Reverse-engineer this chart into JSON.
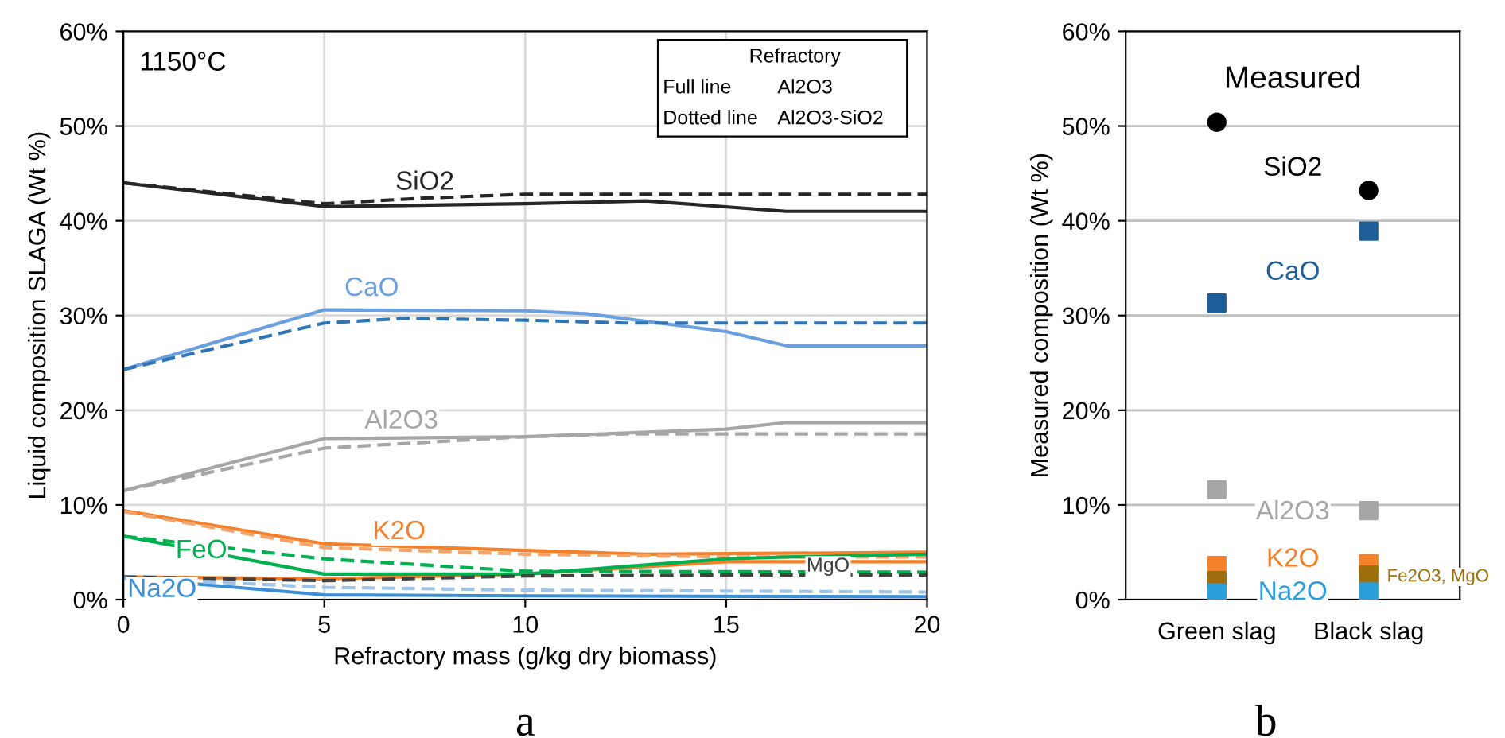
{
  "chart_data": [
    {
      "type": "line",
      "xlabel": "Refractory mass (g/kg dry biomass)",
      "ylabel": "Liquid composition SLAGA (Wt %)",
      "xlim": [
        0,
        20
      ],
      "xticks": [
        0,
        5,
        10,
        15,
        20
      ],
      "ylim": [
        0,
        60
      ],
      "yticks": [
        {
          "value": 0,
          "label": "0%"
        },
        {
          "value": 10,
          "label": "10%"
        },
        {
          "value": 20,
          "label": "20%"
        },
        {
          "value": 30,
          "label": "30%"
        },
        {
          "value": 40,
          "label": "40%"
        },
        {
          "value": 50,
          "label": "50%"
        },
        {
          "value": 60,
          "label": "60%"
        }
      ],
      "grid": true,
      "legend": false,
      "marker": "none",
      "annotations": [
        "1150°C",
        "Refractory",
        "Full line",
        "Al2O3",
        "Dotted line",
        "Al2O3-SiO2",
        "a"
      ],
      "series": [
        {
          "name": "SiO2",
          "color": "#262626",
          "line_style": "solid",
          "x": [
            0,
            5,
            10,
            13,
            16.5,
            20
          ],
          "values": [
            44,
            41.5,
            41.8,
            42.1,
            41,
            41
          ]
        },
        {
          "color": "#262626",
          "line_style": "dashed",
          "x": [
            0,
            5,
            7.5,
            10,
            20
          ],
          "values": [
            44,
            41.8,
            42.4,
            42.8,
            42.8
          ]
        },
        {
          "name": "CaO",
          "color": "#6a9fe0",
          "line_style": "solid",
          "x": [
            0,
            5,
            10,
            11.5,
            15,
            16.5,
            20
          ],
          "values": [
            24.3,
            30.6,
            30.5,
            30.2,
            28.3,
            26.8,
            26.8
          ]
        },
        {
          "color": "#2e75b6",
          "line_style": "dashed",
          "x": [
            0,
            5,
            7,
            10,
            12.5,
            20
          ],
          "values": [
            24.3,
            29.2,
            29.7,
            29.5,
            29.2,
            29.2
          ]
        },
        {
          "name": "Al2O3",
          "color": "#a6a6a6",
          "line_style": "solid",
          "x": [
            0,
            5,
            10,
            15,
            16.5,
            20
          ],
          "values": [
            11.5,
            17,
            17.2,
            18,
            18.7,
            18.7
          ]
        },
        {
          "color": "#a6a6a6",
          "line_style": "dashed",
          "x": [
            0,
            5,
            10,
            12.5,
            20
          ],
          "values": [
            11.5,
            16,
            17.2,
            17.5,
            17.5
          ]
        },
        {
          "name": "K2O",
          "color": "#f4812a",
          "line_style": "solid",
          "x": [
            0,
            5,
            10,
            13,
            20
          ],
          "values": [
            9.4,
            5.9,
            5.2,
            4.8,
            5.0
          ]
        },
        {
          "color": "#f4a46a",
          "line_style": "dashed",
          "x": [
            0,
            5,
            10,
            15,
            20
          ],
          "values": [
            9.3,
            5.5,
            4.8,
            4.5,
            4.5
          ]
        },
        {
          "color": "#f4812a",
          "line_style": "solid",
          "x": [
            0,
            5,
            10,
            15,
            20
          ],
          "values": [
            2.4,
            2.2,
            2.7,
            4.0,
            4.0
          ]
        },
        {
          "name": "FeO",
          "color": "#00b050",
          "line_style": "solid",
          "x": [
            0,
            5,
            10,
            15,
            16.5,
            20
          ],
          "values": [
            6.7,
            2.7,
            2.7,
            4.3,
            4.5,
            4.8
          ]
        },
        {
          "color": "#00b050",
          "line_style": "dashed",
          "x": [
            0,
            5,
            10,
            20
          ],
          "values": [
            6.7,
            4.3,
            3.0,
            2.9
          ]
        },
        {
          "name": "MgO",
          "color": "#404040",
          "line_style": "dashed",
          "x": [
            0,
            5,
            10,
            15,
            20
          ],
          "values": [
            2.4,
            2.0,
            2.5,
            2.6,
            2.6
          ]
        },
        {
          "name": "Na2O",
          "color": "#3a8fd6",
          "line_style": "solid",
          "x": [
            0,
            5,
            10,
            20
          ],
          "values": [
            2.3,
            0.5,
            0.4,
            0.3
          ]
        },
        {
          "color": "#9dc3e6",
          "line_style": "dashed",
          "x": [
            0,
            5,
            10,
            20
          ],
          "values": [
            2.3,
            1.3,
            1.0,
            0.8
          ]
        }
      ]
    },
    {
      "type": "scatter",
      "ylabel": "Measured composition (Wt %)",
      "categories": [
        "Green slag",
        "Black slag"
      ],
      "ylim": [
        0,
        60
      ],
      "yticks": [
        {
          "value": 0,
          "label": "0%"
        },
        {
          "value": 10,
          "label": "10%"
        },
        {
          "value": 20,
          "label": "20%"
        },
        {
          "value": 30,
          "label": "30%"
        },
        {
          "value": 40,
          "label": "40%"
        },
        {
          "value": 50,
          "label": "50%"
        },
        {
          "value": 60,
          "label": "60%"
        }
      ],
      "grid": "y",
      "legend": false,
      "marker": "square",
      "annotations": [
        "Measured",
        "b"
      ],
      "series": [
        {
          "name": "SiO2",
          "color": "#000000",
          "marker": "circle",
          "values": [
            50.4,
            43.2
          ]
        },
        {
          "name": "CaO",
          "color": "#1f5f99",
          "marker": "square",
          "values": [
            31.3,
            38.9
          ]
        },
        {
          "name": "Al2O3",
          "color": "#a6a6a6",
          "marker": "square",
          "values": [
            11.6,
            9.4
          ]
        },
        {
          "name": "K2O",
          "color": "#f4812a",
          "marker": "square",
          "values": [
            3.6,
            3.8
          ]
        },
        {
          "name": "Fe2O3, MgO",
          "color": "#9c6f0c",
          "marker": "square",
          "values": [
            2.0,
            2.6
          ]
        },
        {
          "name": "Na2O",
          "color": "#2a9fdc",
          "marker": "square",
          "values": [
            0.7,
            0.8
          ]
        }
      ]
    }
  ]
}
